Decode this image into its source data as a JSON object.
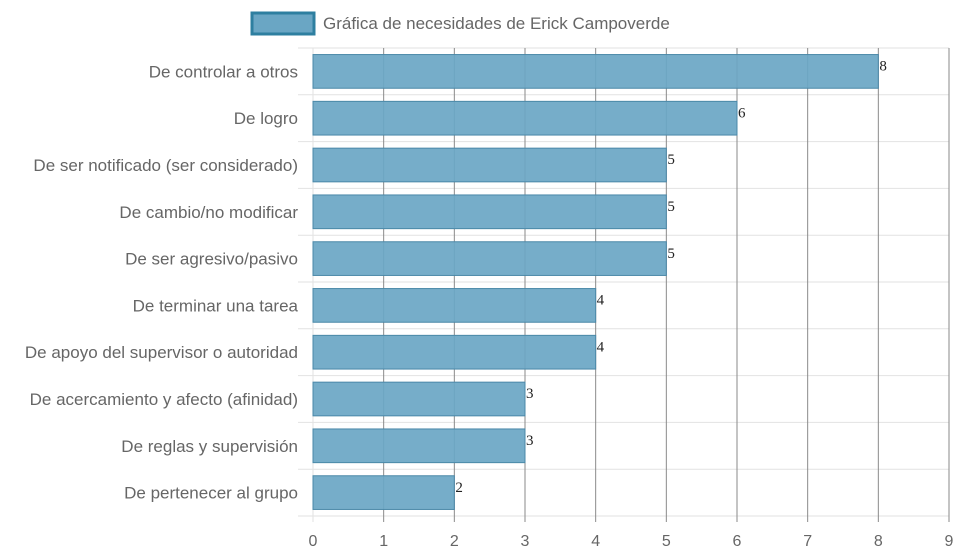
{
  "chart_data": {
    "type": "bar",
    "orientation": "horizontal",
    "legend": {
      "label": "Gráfica de necesidades de Erick Campoverde",
      "position": "top"
    },
    "categories": [
      "De controlar a otros",
      "De logro",
      "De ser notificado (ser considerado)",
      "De cambio/no modificar",
      "De ser agresivo/pasivo",
      "De terminar una tarea",
      "De apoyo del supervisor o autoridad",
      "De acercamiento y afecto (afinidad)",
      "De reglas y supervisión",
      "De pertenecer al grupo"
    ],
    "series": [
      {
        "name": "Gráfica de necesidades de Erick Campoverde",
        "values": [
          8,
          6,
          5,
          5,
          5,
          4,
          4,
          3,
          3,
          2
        ]
      }
    ],
    "xlim": [
      0,
      9
    ],
    "xticks": [
      "0",
      "1",
      "2",
      "3",
      "4",
      "5",
      "6",
      "7",
      "8",
      "9"
    ],
    "grid": true,
    "data_labels": true
  },
  "colors": {
    "bar_fill": "#6aa6c4",
    "bar_stroke": "#4a88a8",
    "legend_box_stroke": "#2e7fa0",
    "grid": "#e2e2e2",
    "grid_strong": "#8a8a8a"
  }
}
